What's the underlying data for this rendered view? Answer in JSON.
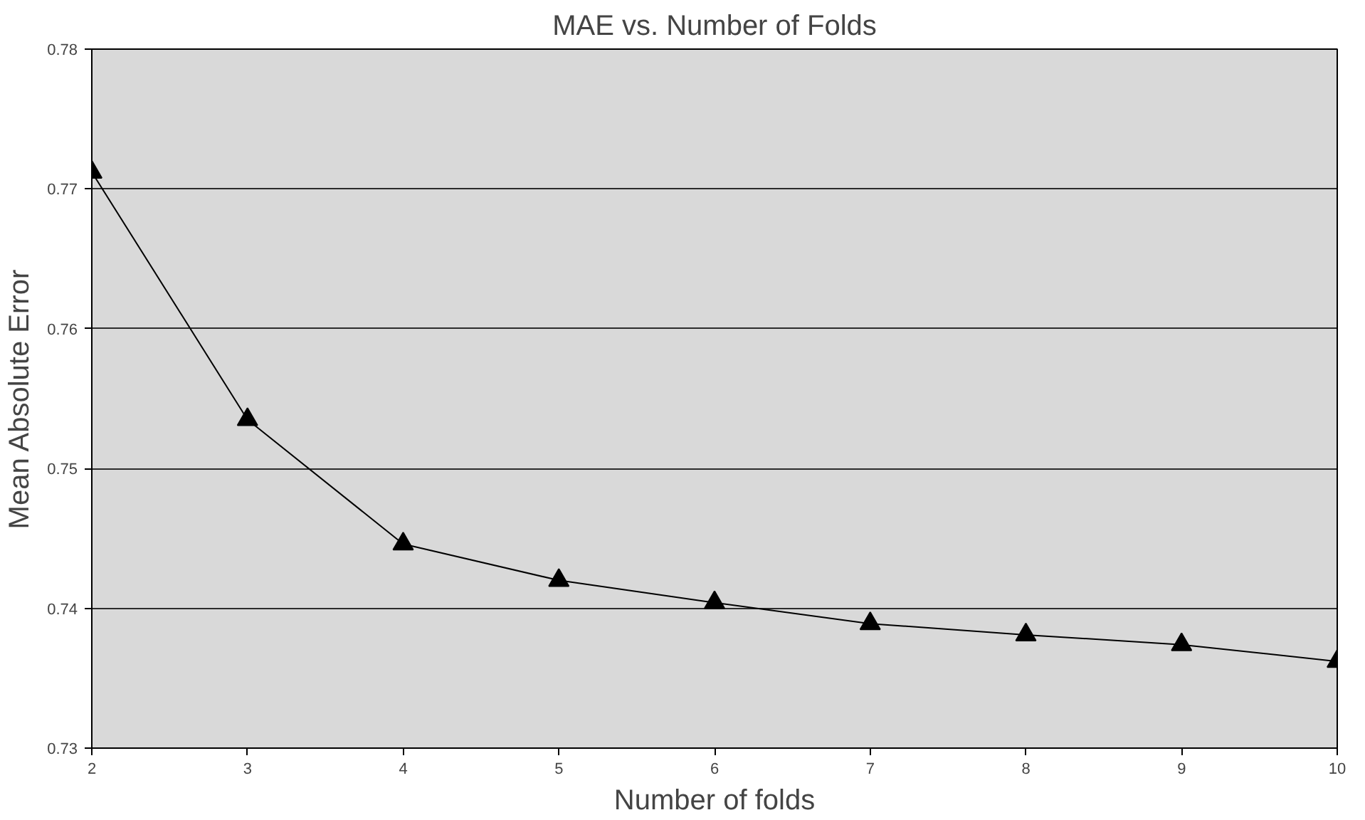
{
  "chart_data": {
    "type": "line",
    "title": "MAE vs. Number of Folds",
    "xlabel": "Number of folds",
    "ylabel": "Mean Absolute Error",
    "x": [
      2,
      3,
      4,
      5,
      6,
      7,
      8,
      9,
      10
    ],
    "series": [
      {
        "color": "#000000",
        "values": [
          0.7712,
          0.7535,
          0.7446,
          0.742,
          0.7404,
          0.7389,
          0.7381,
          0.7374,
          0.7362
        ]
      }
    ],
    "xlim": [
      2,
      10
    ],
    "xticks": [
      2,
      3,
      4,
      5,
      6,
      7,
      8,
      9,
      10
    ],
    "ylim": [
      0.73,
      0.78
    ],
    "yticks": [
      0.73,
      0.74,
      0.75,
      0.76,
      0.77,
      0.78
    ],
    "grid": "y",
    "marker": "triangle",
    "line_style": "solid"
  }
}
